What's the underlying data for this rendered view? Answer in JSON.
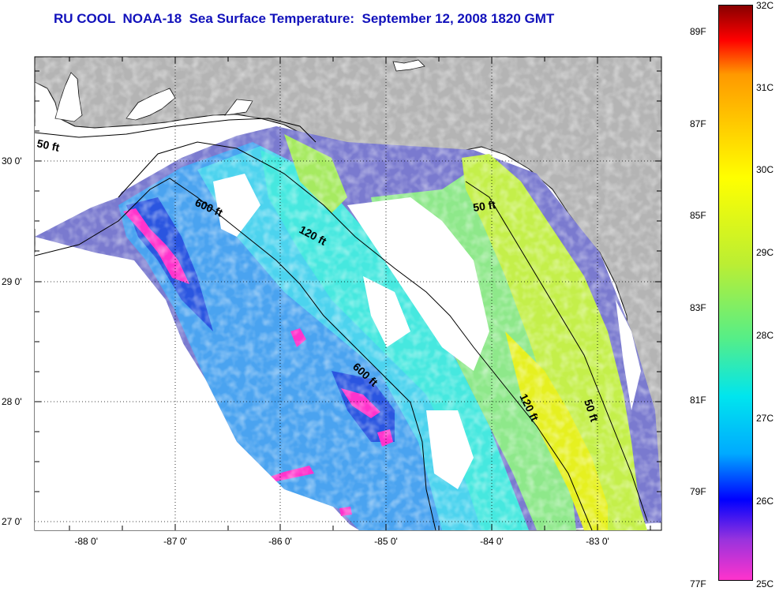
{
  "title": "RU COOL  NOAA-18  Sea Surface Temperature:  September 12, 2008 1820 GMT",
  "map": {
    "latitude_labels": [
      "30 0'",
      "29 0'",
      "28 0'",
      "27 0'"
    ],
    "longitude_labels": [
      "-88 0'",
      "-87 0'",
      "-86 0'",
      "-85 0'",
      "-84 0'",
      "-83 0'"
    ],
    "isobath_labels": [
      "50 ft",
      "600 ft",
      "120 ft",
      "50 ft",
      "600 ft",
      "120 ft",
      "50 ft"
    ],
    "colors": {
      "land": "#b4b4b4",
      "cloud": "#ffffff",
      "isobath": "#000000"
    }
  },
  "colorbar": {
    "fahrenheit_labels": [
      "89F",
      "87F",
      "85F",
      "83F",
      "81F",
      "79F",
      "77F"
    ],
    "celsius_labels": [
      "32C",
      "31C",
      "30C",
      "29C",
      "28C",
      "27C",
      "26C",
      "25C"
    ],
    "colors": [
      "#ff33cc",
      "#9933dd",
      "#0000ff",
      "#00aaff",
      "#00e5ee",
      "#55ee88",
      "#bbee33",
      "#ffff00",
      "#ff9900",
      "#ff0000",
      "#880000"
    ]
  }
}
